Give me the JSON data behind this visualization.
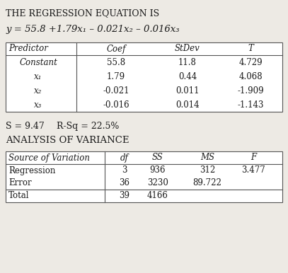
{
  "title": "THE REGRESSION EQUATION IS",
  "equation_parts": {
    "normal": "y = 55.8 +1.79x",
    "full": "y = 55.8 +1.79x₁ – 0.021x₂ – 0.016x₃"
  },
  "reg_headers": [
    "Predictor",
    "Coef",
    "StDev",
    "T"
  ],
  "reg_rows": [
    [
      "Constant",
      "55.8",
      "11.8",
      "4.729"
    ],
    [
      "x₁",
      "1.79",
      "0.44",
      "4.068"
    ],
    [
      "x₂",
      "-0.021",
      "0.011",
      "-1.909"
    ],
    [
      "x₃",
      "-0.016",
      "0.014",
      "-1.143"
    ]
  ],
  "s_text": "S = 9.47",
  "rsq_text": "R-Sq = 22.5%",
  "anova_title": "ANALYSIS OF VARIANCE",
  "anova_headers": [
    "Source of Variation",
    "df",
    "SS",
    "MS",
    "F"
  ],
  "anova_rows": [
    [
      "Regression",
      "3",
      "936",
      "312",
      "3.477"
    ],
    [
      "Error",
      "36",
      "3230",
      "89.722",
      ""
    ],
    [
      "Total",
      "39",
      "4166",
      "",
      ""
    ]
  ],
  "bg_color": "#edeae4",
  "white": "#ffffff",
  "text_color": "#1a1a1a",
  "line_color": "#555555"
}
